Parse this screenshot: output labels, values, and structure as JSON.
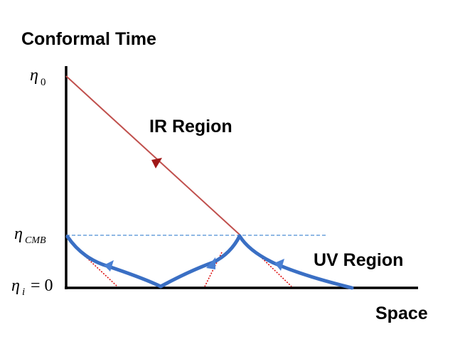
{
  "title": "Conformal Time",
  "x_axis_label": "Space",
  "regions": {
    "ir": "IR Region",
    "uv": "UV Region"
  },
  "y_ticks": {
    "eta0": {
      "symbol": "η",
      "subscript": "0"
    },
    "eta_cmb": {
      "symbol": "η",
      "subscript": "CMB"
    },
    "eta_i": {
      "symbol": "η",
      "subscript": "i",
      "suffix": " = 0"
    }
  },
  "colors": {
    "axes": "#000000",
    "ir_line": "#c0504d",
    "ir_arrow": "#a01818",
    "uv_curve": "#3a6fc4",
    "uv_arrow": "#4a80d4",
    "cmb_dashed": "#6aa0dc",
    "light_cone": "#dd1111"
  }
}
